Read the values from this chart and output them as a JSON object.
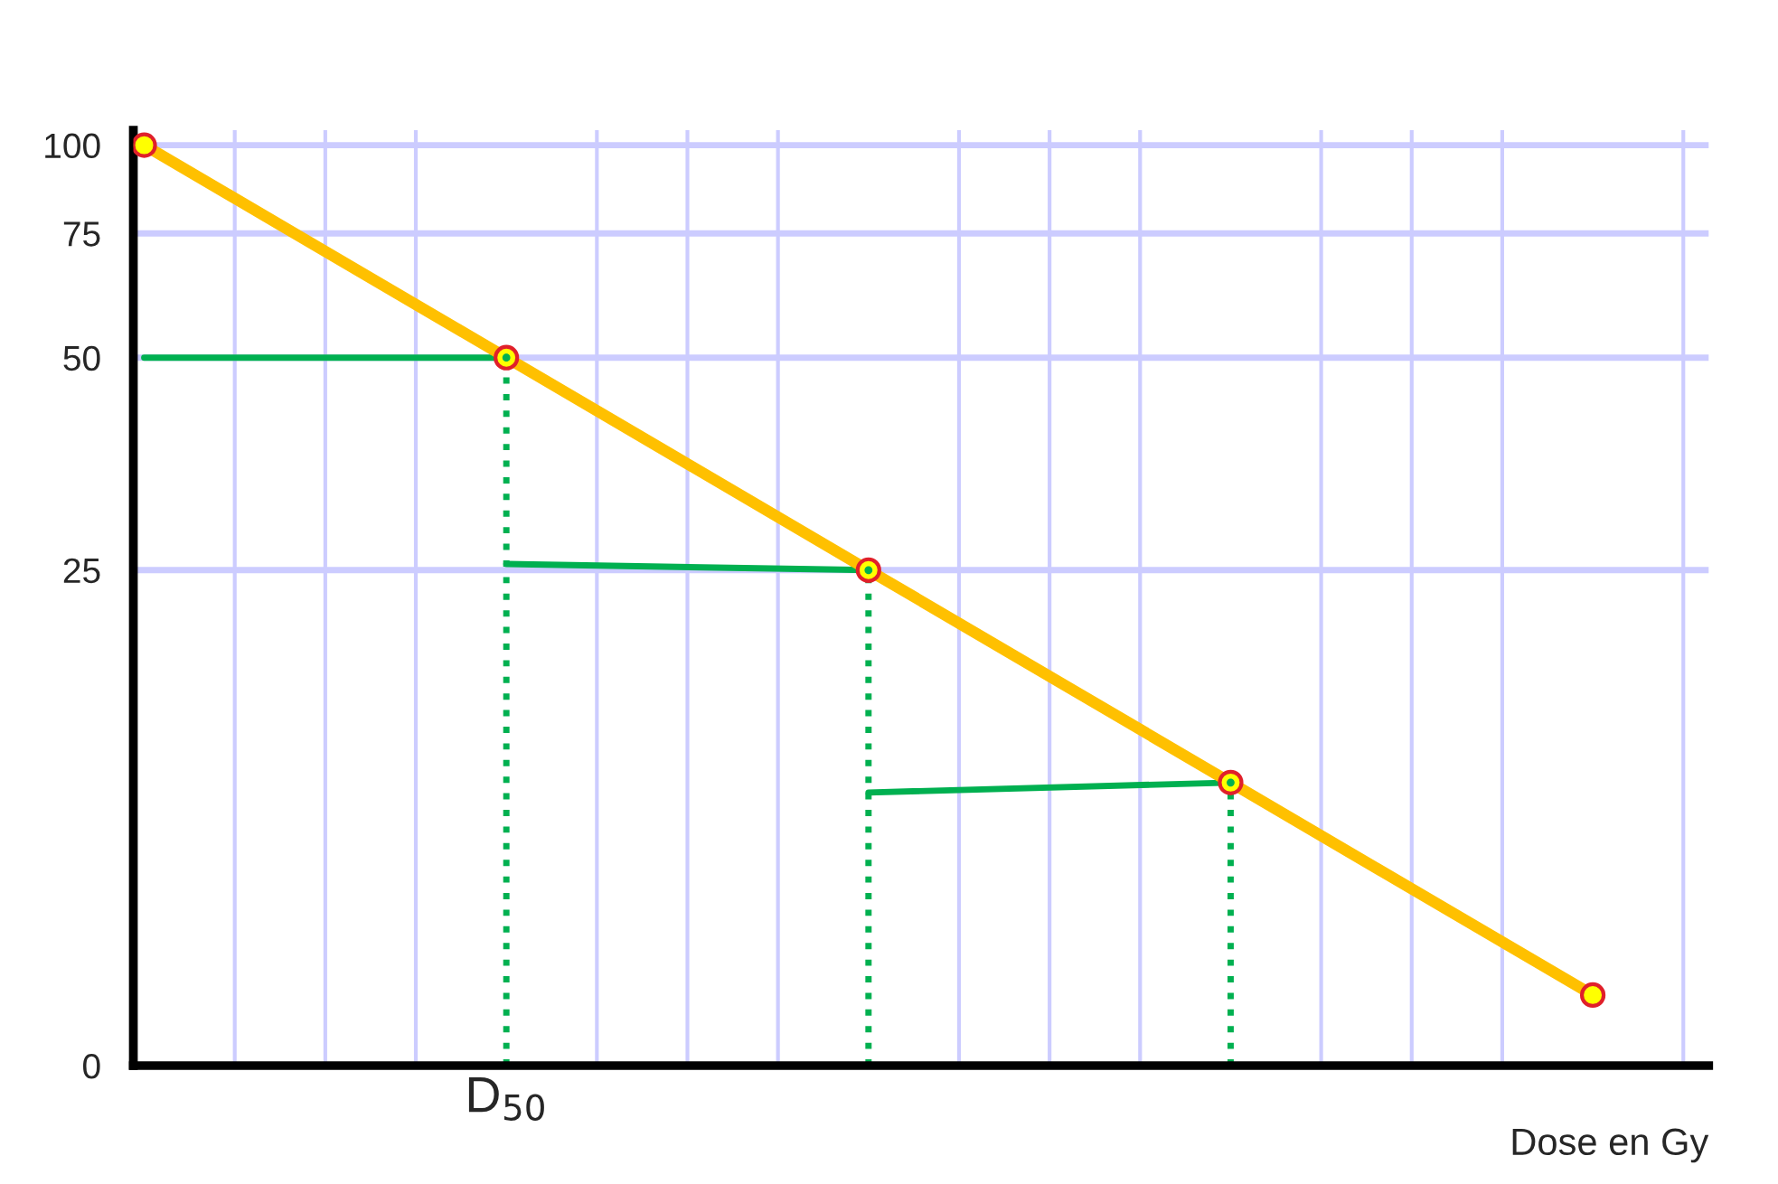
{
  "chart_data": {
    "type": "line",
    "xlabel": "Dose en Gy",
    "log": "y",
    "ylim": [
      0,
      105
    ],
    "yticks": [
      100,
      75,
      50,
      25,
      0
    ],
    "categories": [
      null,
      "D$_{50}$",
      null,
      null,
      null
    ],
    "grid": true,
    "series": [
      {
        "color": "#ffc000",
        "values": [
          100,
          50,
          25,
          12.5,
          6.25
        ],
        "line_style": "solid",
        "marker": "none"
      },
      {
        "type": "scatter",
        "color": "#ffff00",
        "values": [
          100,
          50,
          25,
          12.5,
          6.25
        ],
        "marker": "circle"
      },
      {
        "type": "lollipop",
        "color": "#00b050",
        "values": [
          null,
          50,
          25,
          12.5,
          null
        ],
        "line_style": "dotted",
        "marker": "circle"
      },
      {
        "color": "#00b050",
        "values": [
          50,
          50,
          null,
          null,
          null
        ],
        "line_style": "solid",
        "marker": "none"
      },
      {
        "color": "#00b050",
        "values": [
          null,
          25.5,
          25,
          null,
          null
        ],
        "line_style": "solid",
        "marker": "none"
      },
      {
        "color": "#00b050",
        "values": [
          null,
          null,
          12.1,
          12.5,
          null
        ],
        "line_style": "solid",
        "marker": "none"
      }
    ]
  }
}
